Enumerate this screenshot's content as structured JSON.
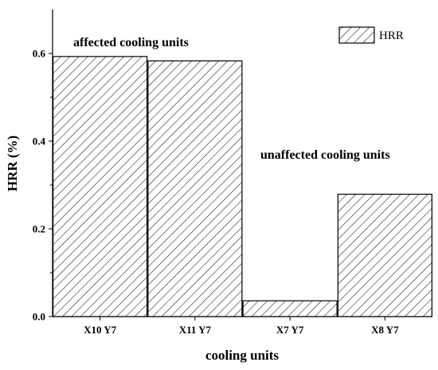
{
  "chart_data": {
    "type": "bar",
    "categories": [
      "X10 Y7",
      "X11 Y7",
      "X7 Y7",
      "X8 Y7"
    ],
    "series": [
      {
        "name": "HRR",
        "values": [
          0.593,
          0.583,
          0.036,
          0.279
        ]
      }
    ],
    "xlabel": "cooling units",
    "ylabel": "HRR (%)",
    "ylim": [
      0,
      0.7
    ],
    "yticks": [
      "0.0",
      "0.2",
      "0.4",
      "0.6"
    ],
    "ytick_values": [
      0,
      0.2,
      0.4,
      0.6
    ],
    "grid": false,
    "legend_position": "top-right",
    "pattern": "diagonal-hatch",
    "annotations": [
      "affected cooling units",
      "unaffected cooling units"
    ]
  }
}
